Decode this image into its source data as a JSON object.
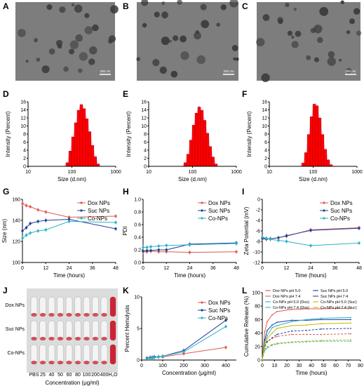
{
  "panel_labels": [
    "A",
    "B",
    "C",
    "D",
    "E",
    "F",
    "G",
    "H",
    "I",
    "J",
    "K",
    "L"
  ],
  "tem": {
    "scale_label": "200 nm"
  },
  "tube_photo": {
    "row_labels": [
      "Dox NPs",
      "Suc NPs",
      "Co-NPs"
    ],
    "col_labels": [
      "PBS",
      "25",
      "40",
      "50",
      "60",
      "80",
      "100",
      "200",
      "400",
      "H₂O"
    ],
    "xlabel": "Concentration (μg/ml)",
    "tube_color": "#c8182a"
  },
  "chart_data": [
    {
      "id": "D",
      "type": "bar",
      "xscale": "log",
      "xlim": [
        10,
        1000
      ],
      "ylim": [
        0,
        16
      ],
      "xticks": [
        "10",
        "100",
        "1000"
      ],
      "yticks": [
        "0",
        "2",
        "4",
        "6",
        "8",
        "10",
        "12",
        "14",
        "16"
      ],
      "xlabel": "Size (d.nm)",
      "ylabel": "Intensity (Percent)",
      "color": "#ff0000",
      "x": [
        78.8,
        91.3,
        105.7,
        122.4,
        141.8,
        164.2,
        190.1,
        220.2,
        255.0,
        295.3,
        342.0,
        396.1
      ],
      "values": [
        0.9,
        3.8,
        7.3,
        10.8,
        13.9,
        15.3,
        14.3,
        11.8,
        8.6,
        5.2,
        2.4,
        0.6
      ]
    },
    {
      "id": "E",
      "type": "bar",
      "xscale": "log",
      "xlim": [
        10,
        1000
      ],
      "ylim": [
        0,
        16
      ],
      "xticks": [
        "10",
        "100",
        "1000"
      ],
      "yticks": [
        "0",
        "2",
        "4",
        "6",
        "8",
        "10",
        "12",
        "14",
        "16"
      ],
      "xlabel": "Size (d.nm)",
      "ylabel": "Intensity (Percent)",
      "color": "#ff0000",
      "x": [
        68.1,
        78.8,
        91.3,
        105.7,
        122.4,
        141.8,
        164.2,
        190.1,
        220.2,
        255.0,
        295.3,
        342.0
      ],
      "values": [
        0.9,
        3.0,
        6.5,
        10.2,
        13.2,
        14.7,
        13.9,
        11.4,
        8.2,
        4.9,
        2.3,
        0.6
      ]
    },
    {
      "id": "F",
      "type": "bar",
      "xscale": "log",
      "xlim": [
        10,
        1000
      ],
      "ylim": [
        0,
        16
      ],
      "xticks": [
        "10",
        "100",
        "1000"
      ],
      "yticks": [
        "0",
        "2",
        "4",
        "6",
        "8",
        "10",
        "12",
        "14",
        "16"
      ],
      "xlabel": "Size (d.nm)",
      "ylabel": "Intensity (Percent)",
      "color": "#ff0000",
      "x": [
        58.8,
        68.1,
        78.8,
        91.3,
        105.7,
        122.4,
        141.8,
        164.2,
        190.1,
        220.2,
        255.0
      ],
      "values": [
        0.8,
        3.4,
        7.9,
        12.3,
        15.4,
        15.0,
        12.0,
        7.9,
        4.2,
        1.6,
        0.4
      ]
    },
    {
      "id": "G",
      "type": "line",
      "xlim": [
        0,
        48
      ],
      "ylim": [
        100,
        160
      ],
      "xticks": [
        "0",
        "12",
        "24",
        "36",
        "48"
      ],
      "yticks": [
        "100",
        "120",
        "140",
        "160"
      ],
      "xlabel": "Time (hours)",
      "ylabel": "Size (nm)",
      "x": [
        0,
        2,
        4,
        8,
        12,
        24,
        48
      ],
      "series": [
        {
          "name": "Dox NPs",
          "color": "#e05a4e",
          "values": [
            156,
            154,
            153,
            150,
            148,
            143,
            144
          ]
        },
        {
          "name": "Suc NPs",
          "color": "#1f3f99",
          "values": [
            130,
            133,
            137,
            139,
            140,
            141,
            132
          ]
        },
        {
          "name": "Co-NPs",
          "color": "#2ab3c4",
          "values": [
            123,
            126,
            128,
            130,
            131,
            139,
            138
          ]
        }
      ]
    },
    {
      "id": "H",
      "type": "line",
      "xlim": [
        0,
        48
      ],
      "ylim": [
        0,
        1.0
      ],
      "xticks": [
        "0",
        "12",
        "24",
        "36",
        "48"
      ],
      "yticks": [
        "0.0",
        "0.2",
        "0.4",
        "0.6",
        "0.8",
        "1.0"
      ],
      "xlabel": "Time (hours)",
      "ylabel": "PDI",
      "x": [
        0,
        2,
        4,
        8,
        12,
        24,
        48
      ],
      "series": [
        {
          "name": "Dox NPs",
          "color": "#e05a4e",
          "values": [
            0.17,
            0.17,
            0.18,
            0.17,
            0.17,
            0.16,
            0.17
          ]
        },
        {
          "name": "Suc NPs",
          "color": "#1f3f99",
          "values": [
            0.18,
            0.19,
            0.19,
            0.2,
            0.2,
            0.29,
            0.31
          ]
        },
        {
          "name": "Co-NPs",
          "color": "#2ab3c4",
          "values": [
            0.24,
            0.24,
            0.25,
            0.26,
            0.27,
            0.28,
            0.3
          ]
        }
      ]
    },
    {
      "id": "I",
      "type": "line",
      "xlim": [
        0,
        48
      ],
      "ylim": [
        -12,
        0
      ],
      "xticks": [
        "0",
        "12",
        "24",
        "36",
        "48"
      ],
      "yticks": [
        "-12",
        "-10",
        "-8",
        "-6",
        "-4",
        "-2",
        "0"
      ],
      "xlabel": "Time (hours)",
      "ylabel": "Zeta Potential (mV)",
      "x": [
        0,
        2,
        4,
        8,
        12,
        24,
        48
      ],
      "series": [
        {
          "name": "Dox NPs",
          "color": "#e05a4e",
          "values": [
            -7.5,
            -7.6,
            -7.5,
            -7.3,
            -7.0,
            -5.8,
            -5.4
          ]
        },
        {
          "name": "Suc NPs",
          "color": "#1f3f99",
          "values": [
            -7.4,
            -7.5,
            -7.5,
            -7.3,
            -6.9,
            -5.9,
            -5.5
          ]
        },
        {
          "name": "Co-NPs",
          "color": "#2ab3c4",
          "values": [
            -7.2,
            -7.4,
            -7.6,
            -7.8,
            -8.0,
            -8.8,
            -8.3
          ]
        }
      ]
    },
    {
      "id": "K",
      "type": "line",
      "xlim": [
        0,
        450
      ],
      "ylim": [
        0,
        10
      ],
      "xticks": [
        "0",
        "100",
        "200",
        "300",
        "400"
      ],
      "yticks": [
        "0",
        "5",
        "10"
      ],
      "xlabel": "Concentration (μg/ml)",
      "ylabel": "Percent Hemolysis",
      "x": [
        25,
        40,
        50,
        60,
        80,
        100,
        200,
        400
      ],
      "series": [
        {
          "name": "Dox NPs",
          "color": "#e05a4e",
          "values": [
            0.3,
            0.3,
            0.4,
            0.4,
            0.5,
            0.5,
            1.0,
            2.0
          ]
        },
        {
          "name": "Suc NPs",
          "color": "#1f3f99",
          "values": [
            0.3,
            0.4,
            0.4,
            0.5,
            0.5,
            0.6,
            1.5,
            6.3
          ]
        },
        {
          "name": "Co-NPs",
          "color": "#2ab3c4",
          "values": [
            0.2,
            0.3,
            0.3,
            0.4,
            0.5,
            0.6,
            1.3,
            5.3
          ]
        }
      ]
    },
    {
      "id": "L",
      "type": "line",
      "xlim": [
        0,
        80
      ],
      "ylim": [
        0,
        100
      ],
      "xticks": [
        "0",
        "10",
        "20",
        "30",
        "40",
        "50",
        "60",
        "70",
        "80"
      ],
      "yticks": [
        "0",
        "20",
        "40",
        "60",
        "80",
        "100"
      ],
      "xlabel": "Time (hours)",
      "ylabel": "Cumulative Release (%)",
      "x": [
        0,
        2,
        4,
        8,
        12,
        24,
        36,
        48,
        72
      ],
      "series": [
        {
          "name": "Dox NPs pH 5.0",
          "color": "#e05a4e",
          "dash": "",
          "values": [
            0,
            42,
            57,
            67,
            72,
            75,
            76,
            76,
            77
          ]
        },
        {
          "name": "Suc NPs pH 5.0",
          "color": "#1f3f99",
          "dash": "",
          "values": [
            0,
            30,
            44,
            52,
            56,
            59,
            59,
            60,
            60
          ]
        },
        {
          "name": "Dox NPs pH 7.4",
          "color": "#e05a4e",
          "dash": "3,2",
          "values": [
            0,
            22,
            28,
            32,
            35,
            38,
            38,
            38,
            39
          ]
        },
        {
          "name": "Suc NPs pH 7.4",
          "color": "#1f3f99",
          "dash": "3,2",
          "values": [
            0,
            20,
            27,
            33,
            38,
            43,
            44,
            46,
            47
          ]
        },
        {
          "name": "Co-NPs pH 5.0 (Dox)",
          "color": "#2ab3c4",
          "dash": "",
          "values": [
            0,
            27,
            36,
            48,
            51,
            57,
            60,
            62,
            63
          ]
        },
        {
          "name": "Co-NPs pH 5.0 (Suc)",
          "color": "#c9b800",
          "dash": "",
          "values": [
            0,
            23,
            32,
            40,
            47,
            51,
            52,
            54,
            55
          ]
        },
        {
          "name": "Co-NPs pH 7.4 (Dox)",
          "color": "#2ab3c4",
          "dash": "3,2",
          "values": [
            0,
            14,
            18,
            22,
            24,
            26,
            27,
            28,
            28
          ]
        },
        {
          "name": "Co-NPs pH 7.4 (Suc)",
          "color": "#c9b800",
          "dash": "3,2",
          "values": [
            0,
            16,
            20,
            23,
            25,
            27,
            28,
            29,
            30
          ]
        }
      ]
    }
  ]
}
